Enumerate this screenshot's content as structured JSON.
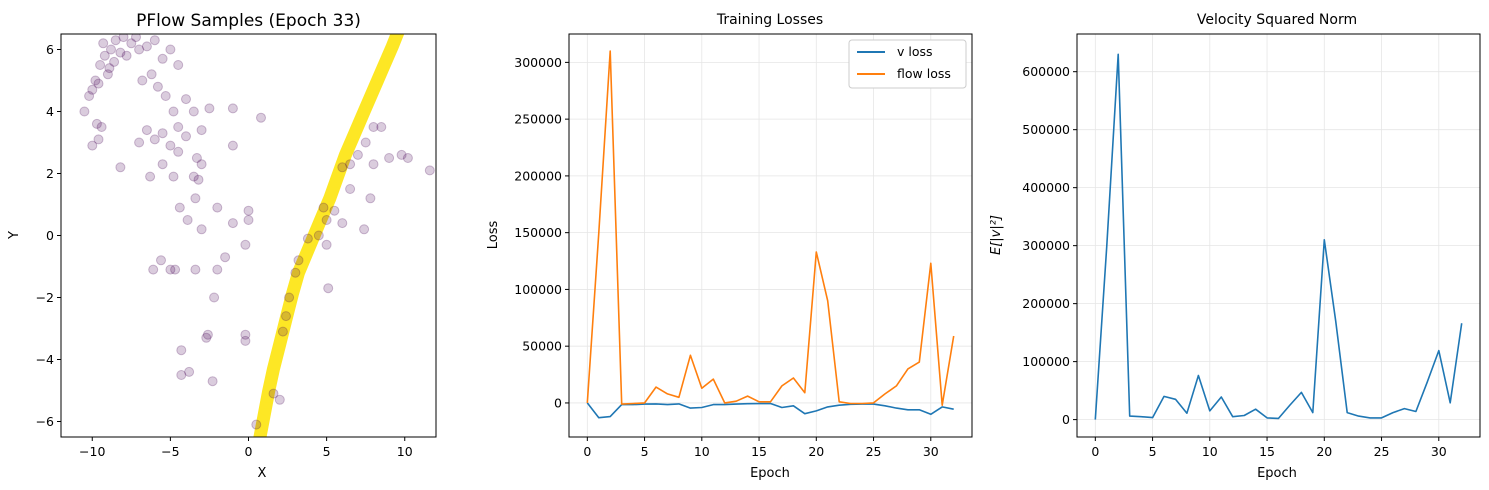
{
  "colors": {
    "v_loss": "#1f77b4",
    "flow_loss": "#ff7f0e",
    "generated": "#fde725",
    "samples": "#440154",
    "grid": "#e6e6e6"
  },
  "chart_data": [
    {
      "type": "scatter",
      "title": "PFlow Samples (Epoch 33)",
      "xlabel": "X",
      "ylabel": "Y",
      "xlim": [
        -12,
        12
      ],
      "ylim": [
        -6.5,
        6.5
      ],
      "xticks": [
        -10,
        -5,
        0,
        5,
        10
      ],
      "yticks": [
        -6,
        -4,
        -2,
        0,
        2,
        4,
        6
      ],
      "grid": false,
      "series": [
        {
          "style": "dense yellow trajectory",
          "points": [
            [
              0.7,
              -6.6
            ],
            [
              1.0,
              -5.8
            ],
            [
              1.3,
              -5.0
            ],
            [
              1.6,
              -4.3
            ],
            [
              2.0,
              -3.5
            ],
            [
              2.4,
              -2.7
            ],
            [
              2.8,
              -1.9
            ],
            [
              3.2,
              -1.2
            ],
            [
              3.7,
              -0.6
            ],
            [
              4.2,
              0.0
            ],
            [
              4.7,
              0.6
            ],
            [
              5.2,
              1.2
            ],
            [
              5.7,
              1.9
            ],
            [
              6.2,
              2.6
            ],
            [
              6.8,
              3.3
            ],
            [
              7.4,
              4.0
            ],
            [
              8.0,
              4.7
            ],
            [
              8.6,
              5.4
            ],
            [
              9.2,
              6.1
            ],
            [
              9.6,
              6.6
            ]
          ]
        },
        {
          "style": "translucent purple scatter",
          "points": [
            [
              -9.5,
              5.5
            ],
            [
              -9.2,
              5.8
            ],
            [
              -8.8,
              6.0
            ],
            [
              -8.5,
              6.3
            ],
            [
              -8.0,
              6.4
            ],
            [
              -7.5,
              6.2
            ],
            [
              -7.0,
              6.0
            ],
            [
              -9.8,
              5.0
            ],
            [
              -10.0,
              4.7
            ],
            [
              -9.0,
              5.2
            ],
            [
              -8.6,
              5.6
            ],
            [
              -8.2,
              5.9
            ],
            [
              -7.8,
              5.8
            ],
            [
              -9.3,
              6.2
            ],
            [
              -10.2,
              4.5
            ],
            [
              -9.6,
              4.9
            ],
            [
              -8.9,
              5.4
            ],
            [
              -7.2,
              6.4
            ],
            [
              -6.5,
              6.1
            ],
            [
              -6.0,
              6.3
            ],
            [
              -5.5,
              5.7
            ],
            [
              -5.0,
              6.0
            ],
            [
              -4.5,
              5.5
            ],
            [
              -6.8,
              5.0
            ],
            [
              -6.2,
              5.2
            ],
            [
              -5.8,
              4.8
            ],
            [
              -5.3,
              4.5
            ],
            [
              -4.8,
              4.0
            ],
            [
              -4.0,
              4.4
            ],
            [
              -3.5,
              4.0
            ],
            [
              -3.0,
              3.4
            ],
            [
              -2.5,
              4.1
            ],
            [
              -10.5,
              4.0
            ],
            [
              -9.7,
              3.6
            ],
            [
              -9.4,
              3.5
            ],
            [
              -10.0,
              2.9
            ],
            [
              -9.6,
              3.1
            ],
            [
              -8.2,
              2.2
            ],
            [
              -7.0,
              3.0
            ],
            [
              -6.5,
              3.4
            ],
            [
              -6.0,
              3.1
            ],
            [
              -5.5,
              3.3
            ],
            [
              -5.0,
              2.9
            ],
            [
              -4.5,
              3.5
            ],
            [
              -4.0,
              3.2
            ],
            [
              -3.3,
              2.5
            ],
            [
              -3.0,
              2.3
            ],
            [
              -4.5,
              2.7
            ],
            [
              -5.5,
              2.3
            ],
            [
              -6.3,
              1.9
            ],
            [
              -3.5,
              1.9
            ],
            [
              -3.2,
              1.8
            ],
            [
              -4.8,
              1.9
            ],
            [
              -1.0,
              4.1
            ],
            [
              -1.0,
              2.9
            ],
            [
              0.8,
              3.8
            ],
            [
              -4.4,
              0.9
            ],
            [
              -3.9,
              0.5
            ],
            [
              -3.4,
              1.2
            ],
            [
              -3.0,
              0.2
            ],
            [
              -2.0,
              0.9
            ],
            [
              -1.0,
              0.4
            ],
            [
              0.0,
              0.8
            ],
            [
              0.0,
              0.5
            ],
            [
              -0.2,
              -0.3
            ],
            [
              -5.6,
              -0.8
            ],
            [
              -5.0,
              -1.1
            ],
            [
              -4.7,
              -1.1
            ],
            [
              -6.1,
              -1.1
            ],
            [
              -3.4,
              -1.1
            ],
            [
              -2.0,
              -1.1
            ],
            [
              -1.5,
              -0.7
            ],
            [
              -2.2,
              -2.0
            ],
            [
              -2.7,
              -3.3
            ],
            [
              -2.6,
              -3.2
            ],
            [
              -0.2,
              -3.2
            ],
            [
              -0.2,
              -3.4
            ],
            [
              -4.3,
              -3.7
            ],
            [
              -3.8,
              -4.4
            ],
            [
              -4.3,
              -4.5
            ],
            [
              -2.3,
              -4.7
            ],
            [
              0.5,
              -6.1
            ],
            [
              1.6,
              -5.1
            ],
            [
              2.0,
              -5.3
            ],
            [
              2.2,
              -3.1
            ],
            [
              2.4,
              -2.6
            ],
            [
              2.6,
              -2.0
            ],
            [
              3.0,
              -1.2
            ],
            [
              3.2,
              -0.8
            ],
            [
              3.8,
              -0.1
            ],
            [
              4.5,
              0.0
            ],
            [
              5.0,
              -0.3
            ],
            [
              5.1,
              -1.7
            ],
            [
              5.0,
              0.5
            ],
            [
              4.8,
              0.9
            ],
            [
              5.5,
              0.8
            ],
            [
              6.0,
              0.4
            ],
            [
              6.5,
              1.5
            ],
            [
              6.0,
              2.2
            ],
            [
              6.5,
              2.3
            ],
            [
              7.0,
              2.6
            ],
            [
              7.4,
              0.2
            ],
            [
              7.8,
              1.2
            ],
            [
              7.5,
              3.0
            ],
            [
              8.0,
              2.3
            ],
            [
              8.0,
              3.5
            ],
            [
              9.0,
              2.5
            ],
            [
              9.8,
              2.6
            ],
            [
              10.2,
              2.5
            ],
            [
              11.6,
              2.1
            ],
            [
              8.5,
              3.5
            ]
          ]
        }
      ]
    },
    {
      "type": "line",
      "title": "Training Losses",
      "xlabel": "Epoch",
      "ylabel": "Loss",
      "xlim": [
        -1.6,
        33.6
      ],
      "ylim": [
        -30000,
        325000
      ],
      "xticks": [
        0,
        5,
        10,
        15,
        20,
        25,
        30
      ],
      "yticks": [
        0,
        50000,
        100000,
        150000,
        200000,
        250000,
        300000
      ],
      "grid": true,
      "legend_position": "top-right",
      "x": [
        0,
        1,
        2,
        3,
        4,
        5,
        6,
        7,
        8,
        9,
        10,
        11,
        12,
        13,
        14,
        15,
        16,
        17,
        18,
        19,
        20,
        21,
        22,
        23,
        24,
        25,
        26,
        27,
        28,
        29,
        30,
        31,
        32
      ],
      "series": [
        {
          "name": "v loss",
          "values": [
            0,
            -13000,
            -12000,
            -1500,
            -1500,
            -1000,
            -800,
            -1500,
            -800,
            -4500,
            -4000,
            -1500,
            -1500,
            -1000,
            -700,
            -600,
            -500,
            -4000,
            -2500,
            -9500,
            -7000,
            -3500,
            -2000,
            -1200,
            -1000,
            -1000,
            -2500,
            -4500,
            -6000,
            -6000,
            -10000,
            -3500,
            -5500
          ]
        },
        {
          "name": "flow loss",
          "values": [
            0,
            150000,
            310000,
            -1000,
            -500,
            0,
            14000,
            8000,
            5000,
            42000,
            13000,
            21000,
            0,
            1500,
            6000,
            1000,
            1000,
            15000,
            22000,
            9000,
            133000,
            90000,
            1000,
            -500,
            -500,
            0,
            8000,
            15000,
            30000,
            36000,
            123000,
            -2000,
            59000
          ]
        }
      ]
    },
    {
      "type": "line",
      "title": "Velocity Squared Norm",
      "xlabel": "Epoch",
      "ylabel": "E[|v|²]",
      "xlim": [
        -1.6,
        33.6
      ],
      "ylim": [
        -30000,
        665000
      ],
      "xticks": [
        0,
        5,
        10,
        15,
        20,
        25,
        30
      ],
      "yticks": [
        0,
        100000,
        200000,
        300000,
        400000,
        500000,
        600000
      ],
      "grid": true,
      "x": [
        0,
        1,
        2,
        3,
        4,
        5,
        6,
        7,
        8,
        9,
        10,
        11,
        12,
        13,
        14,
        15,
        16,
        17,
        18,
        19,
        20,
        21,
        22,
        23,
        24,
        25,
        26,
        27,
        28,
        29,
        30,
        31,
        32
      ],
      "series": [
        {
          "values": [
            0,
            300000,
            630000,
            6000,
            5000,
            3500,
            40000,
            35000,
            11000,
            76000,
            15000,
            39000,
            5000,
            7000,
            18000,
            3000,
            2000,
            25000,
            47000,
            12000,
            310000,
            170000,
            12000,
            6000,
            3000,
            3000,
            12000,
            19000,
            14000,
            65000,
            119000,
            29000,
            166000
          ]
        }
      ]
    }
  ]
}
